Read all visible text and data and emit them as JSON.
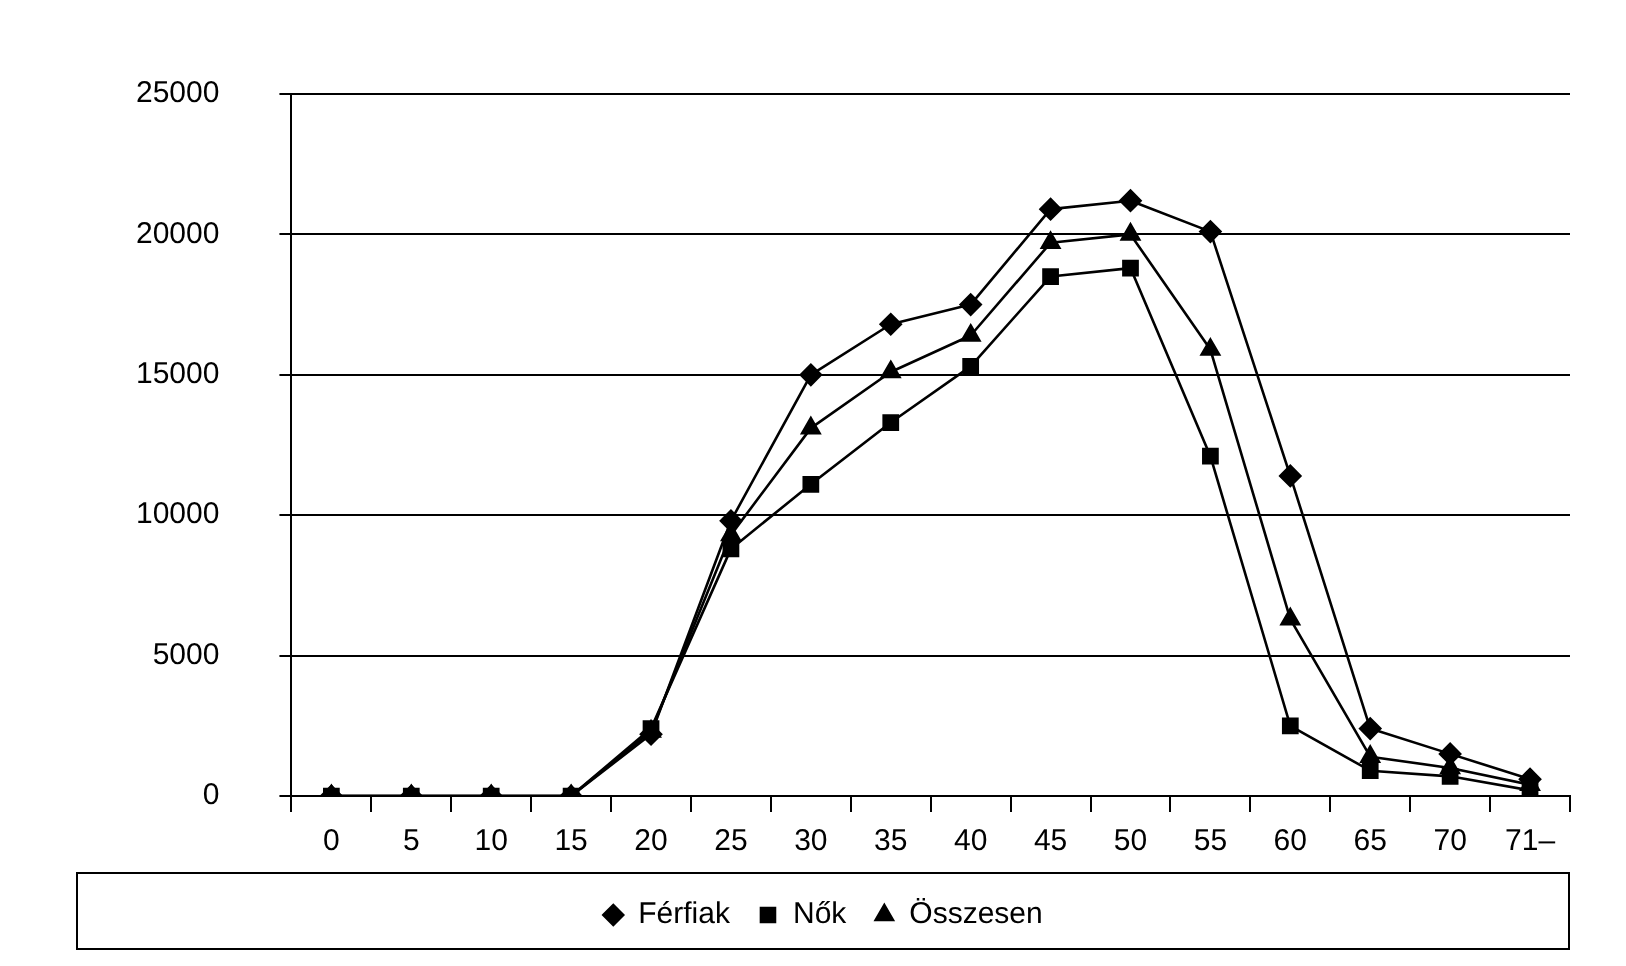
{
  "chart_data": {
    "type": "line",
    "categories": [
      "0",
      "5",
      "10",
      "15",
      "20",
      "25",
      "30",
      "35",
      "40",
      "45",
      "50",
      "55",
      "60",
      "65",
      "70",
      "71–"
    ],
    "series": [
      {
        "name": "Férfiak",
        "color": "#000000",
        "marker": "diamond",
        "values": [
          0,
          0,
          0,
          0,
          2200,
          9800,
          15000,
          16800,
          17500,
          20900,
          21200,
          20100,
          11400,
          2400,
          1500,
          600
        ]
      },
      {
        "name": "Nők",
        "color": "#000000",
        "marker": "square",
        "values": [
          0,
          0,
          0,
          0,
          2400,
          8800,
          11100,
          13300,
          15300,
          18500,
          18800,
          12100,
          2500,
          900,
          700,
          200
        ]
      },
      {
        "name": "Összesen",
        "color": "#000000",
        "marker": "triangle",
        "values": [
          0,
          0,
          0,
          0,
          2300,
          9300,
          13100,
          15100,
          16400,
          19700,
          20000,
          15900,
          6300,
          1400,
          1000,
          400
        ]
      }
    ],
    "ylim": [
      0,
      25000
    ],
    "yticks": [
      0,
      5000,
      10000,
      15000,
      20000,
      25000
    ],
    "grid": "y",
    "legend": "bottom",
    "line_style": "solid"
  }
}
